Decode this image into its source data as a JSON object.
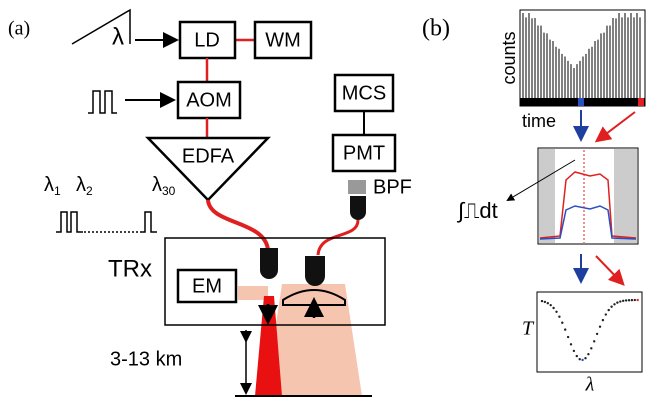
{
  "panel_a": {
    "label": "(a)",
    "ramp_label": "λ",
    "ld": "LD",
    "wm": "WM",
    "aom": "AOM",
    "edfa": "EDFA",
    "mcs": "MCS",
    "pmt": "PMT",
    "bpf": "BPF",
    "pulses": [
      {
        "base": "λ",
        "sub": "1"
      },
      {
        "base": "λ",
        "sub": "2"
      },
      {
        "base": "λ",
        "sub": "30"
      }
    ],
    "trx": "TRx",
    "em": "EM",
    "range": "3-13 km"
  },
  "panel_b": {
    "label": "(b)",
    "counts": "counts",
    "time": "time",
    "integral": "∫⎍dt",
    "t_axis": "T",
    "lambda_axis": "λ"
  }
}
